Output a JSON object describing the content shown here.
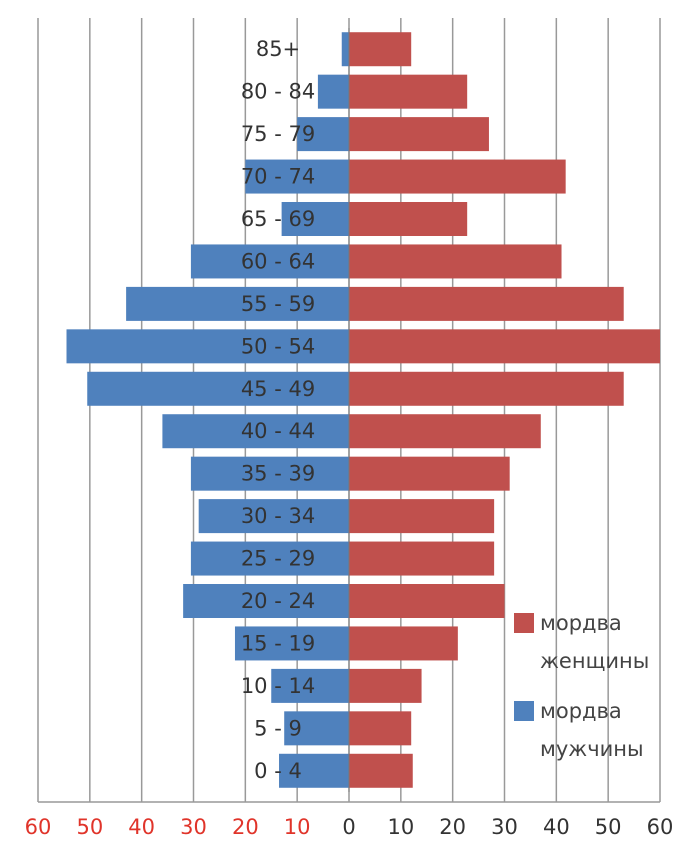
{
  "chart_data": {
    "type": "pyramid",
    "categories": [
      "0 - 4",
      "5 - 9",
      "10 - 14",
      "15 - 19",
      "20 - 24",
      "25 - 29",
      "30 - 34",
      "35 - 39",
      "40 - 44",
      "45 - 49",
      "50 - 54",
      "55 - 59",
      "60 - 64",
      "65 - 69",
      "70 - 74",
      "75 - 79",
      "80 - 84",
      "85+"
    ],
    "series": [
      {
        "name": "мордва женщины",
        "color": "#c0504d",
        "values": [
          12.3,
          12,
          14,
          21,
          30,
          28,
          28,
          31,
          37,
          53,
          60,
          53,
          41,
          22.8,
          41.8,
          27,
          22.8,
          12
        ]
      },
      {
        "name": "мордва мужчины",
        "color": "#4f81bd",
        "values": [
          -13.5,
          -12.5,
          -15,
          -22,
          -32,
          -30.5,
          -29,
          -30.5,
          -36,
          -50.5,
          -54.5,
          -43,
          -30.5,
          -13,
          -20,
          -10,
          -6,
          -1.4
        ]
      }
    ],
    "xlim": [
      -60,
      60
    ],
    "xticks": [
      {
        "value": -60,
        "label": "60"
      },
      {
        "value": -50,
        "label": "50"
      },
      {
        "value": -40,
        "label": "40"
      },
      {
        "value": -30,
        "label": "30"
      },
      {
        "value": -20,
        "label": "20"
      },
      {
        "value": -10,
        "label": "10"
      },
      0,
      10,
      20,
      30,
      40,
      50,
      60
    ],
    "negative_tick_color": "#e0342a",
    "grid": true,
    "legend": "right"
  }
}
